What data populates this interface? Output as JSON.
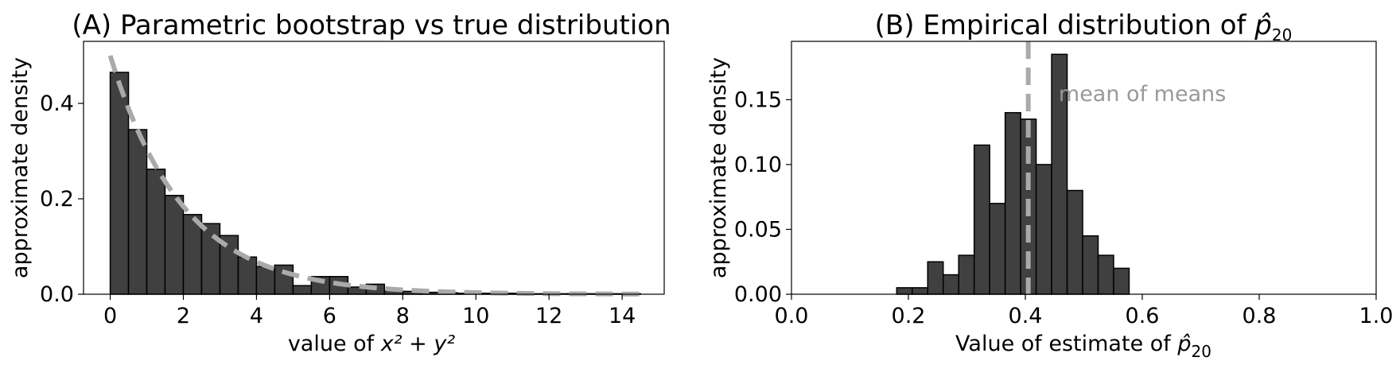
{
  "chart_data": [
    {
      "type": "bar",
      "title_prefix": "(A) Parametric bootstrap vs true distribution",
      "xlabel_prefix": "value of ",
      "xlabel_math": "x² + y²",
      "ylabel": "approximate density",
      "xlim": [
        -0.73,
        15.15
      ],
      "ylim": [
        0,
        0.53
      ],
      "xticks": [
        "0",
        "2",
        "4",
        "6",
        "8",
        "10",
        "12",
        "14"
      ],
      "xtick_values": [
        0,
        2,
        4,
        6,
        8,
        10,
        12,
        14
      ],
      "yticks": [
        "0.0",
        "0.2",
        "0.4"
      ],
      "ytick_values": [
        0,
        0.2,
        0.4
      ],
      "bin_start": 0,
      "bin_width": 0.5,
      "values": [
        0.465,
        0.345,
        0.262,
        0.207,
        0.167,
        0.148,
        0.123,
        0.078,
        0.058,
        0.061,
        0.018,
        0.037,
        0.037,
        0.015,
        0.021,
        0.007,
        0.006,
        0.004,
        0.003,
        0.002,
        0.002,
        0.002,
        0.002,
        0.001,
        0.001,
        0.001,
        0.001,
        0.001,
        0.001
      ],
      "curve": {
        "name": "true density",
        "function": "0.5*exp(-x/2)",
        "x_range": [
          0,
          14.5
        ],
        "color": "#aaaaaa",
        "style": "dashed"
      },
      "bar_color": "#404040",
      "edge_color": "#000000"
    },
    {
      "type": "bar",
      "title_prefix": "(B) Empirical distribution of ",
      "title_math_base": "p̂",
      "title_math_sub": "20",
      "xlabel_prefix": "Value of estimate of ",
      "xlabel_math_base": "p̂",
      "xlabel_math_sub": "20",
      "ylabel": "approximate density",
      "xlim": [
        0,
        1
      ],
      "ylim": [
        0,
        0.195
      ],
      "xticks": [
        "0.0",
        "0.2",
        "0.4",
        "0.6",
        "0.8",
        "1.0"
      ],
      "xtick_values": [
        0,
        0.2,
        0.4,
        0.6,
        0.8,
        1.0
      ],
      "yticks": [
        "0.00",
        "0.05",
        "0.10",
        "0.15"
      ],
      "ytick_values": [
        0,
        0.05,
        0.1,
        0.15
      ],
      "bin_start": 0.18,
      "bin_width": 0.0265,
      "values": [
        0.005,
        0.005,
        0.025,
        0.015,
        0.03,
        0.115,
        0.07,
        0.14,
        0.135,
        0.1,
        0.185,
        0.08,
        0.045,
        0.03,
        0.02
      ],
      "vline": {
        "x": 0.405,
        "color": "#aaaaaa",
        "style": "dashed"
      },
      "annotation": {
        "text": "mean of means",
        "x": 0.457,
        "y": 0.155
      },
      "bar_color": "#404040",
      "edge_color": "#000000"
    }
  ]
}
